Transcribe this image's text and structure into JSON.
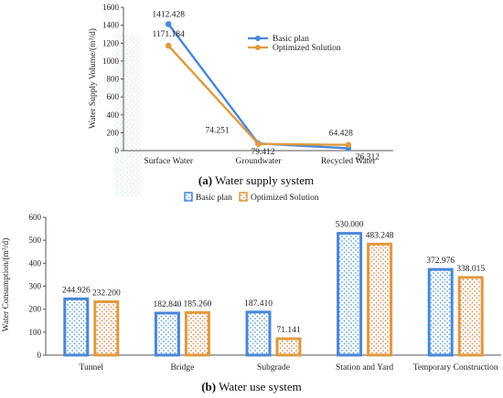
{
  "chart_data": [
    {
      "type": "line",
      "ylabel": "Water Supply Volume/(m³/d)",
      "ylim": [
        0,
        1600
      ],
      "yticks": [
        0,
        200,
        400,
        600,
        800,
        1000,
        1200,
        1400,
        1600
      ],
      "categories": [
        "Surface Water",
        "Groundwater",
        "Recycled Water"
      ],
      "series": [
        {
          "name": "Basic plan",
          "color": "#4a86d9",
          "values": [
            1412.428,
            79.412,
            26.312
          ],
          "labels": [
            "1412.428",
            "79.412",
            "26.312"
          ]
        },
        {
          "name": "Optimized Solution",
          "color": "#e09a3e",
          "values": [
            1171.184,
            74.251,
            64.428
          ],
          "labels": [
            "1171.184",
            "74.251",
            "64.428"
          ]
        }
      ],
      "caption_letter": "(a)",
      "caption_text": " Water supply system",
      "legend": "top-right"
    },
    {
      "type": "bar",
      "ylabel": "Water Consumption/(m³/d)",
      "ylim": [
        0,
        600
      ],
      "yticks": [
        0,
        100,
        200,
        300,
        400,
        500,
        600
      ],
      "categories": [
        "Tunnel",
        "Bridge",
        "Subgrade",
        "Station and Yard",
        "Temporary Construction"
      ],
      "series": [
        {
          "name": "Basic plan",
          "color": "#4a86d9",
          "values": [
            244.926,
            182.84,
            187.41,
            530.0,
            372.976
          ],
          "labels": [
            "244.926",
            "182.840",
            "187.410",
            "530.000",
            "372.976"
          ]
        },
        {
          "name": "Optimized Solution",
          "color": "#e09a3e",
          "values": [
            232.2,
            185.26,
            71.141,
            483.248,
            338.015
          ],
          "labels": [
            "232.200",
            "185.260",
            "71.141",
            "483.248",
            "338.015"
          ]
        }
      ],
      "caption_letter": "(b)",
      "caption_text": " Water use system",
      "legend": "top"
    }
  ]
}
